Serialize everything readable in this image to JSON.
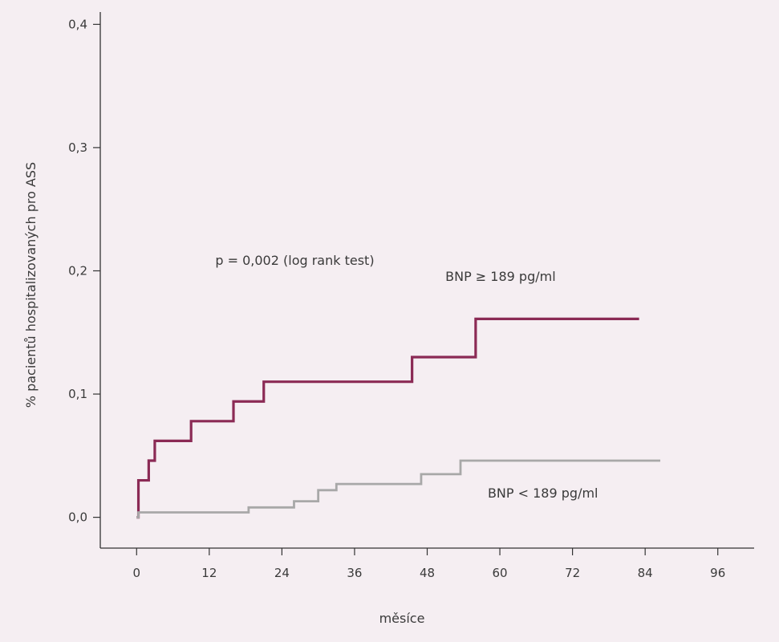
{
  "chart_data": {
    "type": "line",
    "subtype": "step",
    "xlabel": "měsíce",
    "ylabel": "% pacientů hospitalizovaných pro ASS",
    "xlim": [
      -6,
      102
    ],
    "ylim": [
      -0.025,
      0.41
    ],
    "xticks": [
      0,
      12,
      24,
      36,
      48,
      60,
      72,
      84,
      96
    ],
    "xtick_labels": [
      "0",
      "12",
      "24",
      "36",
      "48",
      "60",
      "72",
      "84",
      "96"
    ],
    "yticks": [
      0,
      0.1,
      0.2,
      0.3,
      0.4
    ],
    "ytick_labels": [
      "0,0",
      "0,1",
      "0,2",
      "0,3",
      "0,4"
    ],
    "grid": false,
    "annotations": [
      {
        "text": "p = 0,002  (log rank test)",
        "x": 13,
        "y": 0.205
      }
    ],
    "series": [
      {
        "name": "BNP ≥ 189 pg/ml",
        "color": "#8b2a55",
        "label_at": {
          "x": 51,
          "y": 0.192
        },
        "x": [
          0,
          0.3,
          2,
          3,
          9,
          16,
          21,
          45.5,
          56,
          83
        ],
        "y": [
          0,
          0.03,
          0.046,
          0.062,
          0.078,
          0.094,
          0.11,
          0.13,
          0.161,
          0.161
        ]
      },
      {
        "name": "BNP < 189 pg/ml",
        "color": "#a8a8a8",
        "label_at": {
          "x": 58,
          "y": 0.016
        },
        "x": [
          0,
          0.3,
          18.5,
          26,
          30,
          33,
          47,
          53.5,
          86.5
        ],
        "y": [
          0,
          0.004,
          0.008,
          0.013,
          0.022,
          0.027,
          0.035,
          0.046,
          0.046
        ]
      }
    ]
  }
}
